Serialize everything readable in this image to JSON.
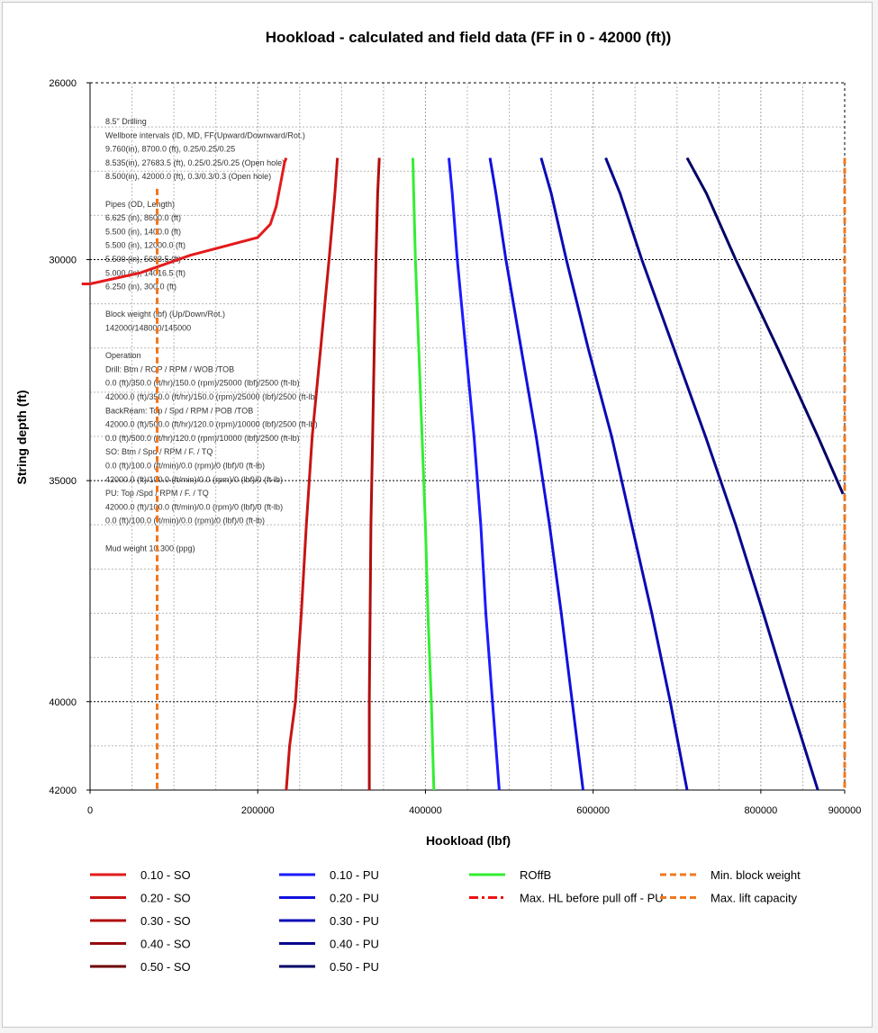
{
  "chart_data": {
    "type": "line",
    "title": "Hookload - calculated and field data (FF in 0 - 42000 (ft))",
    "xlabel": "Hookload (lbf)",
    "ylabel": "String depth (ft)",
    "xlim": [
      0,
      900000
    ],
    "ylim": [
      26000,
      42000
    ],
    "y_inverted": true,
    "x_ticks": [
      0,
      200000,
      400000,
      600000,
      800000,
      900000
    ],
    "x_tick_labels": [
      "0",
      "200000",
      "400000",
      "600000",
      "800000",
      "900000"
    ],
    "y_ticks": [
      26000,
      30000,
      35000,
      40000,
      42000
    ],
    "y_tick_labels": [
      "26000",
      "30000",
      "35000",
      "40000",
      "42000"
    ],
    "grid": true,
    "legend_position": "bottom",
    "series": [
      {
        "name": "0.10 - SO",
        "color": "#e41a1c",
        "style": "solid",
        "points": [
          [
            -10000,
            30550
          ],
          [
            0,
            30550
          ],
          [
            60000,
            30300
          ],
          [
            120000,
            29900
          ],
          [
            200000,
            29500
          ],
          [
            215000,
            29200
          ],
          [
            222000,
            28800
          ],
          [
            228000,
            28200
          ],
          [
            232000,
            27800
          ],
          [
            234000,
            27700
          ]
        ]
      },
      {
        "name": "0.20 - SO",
        "color": "#c81414",
        "style": "solid",
        "points": [
          [
            295000,
            27700
          ],
          [
            292000,
            28500
          ],
          [
            285000,
            30000
          ],
          [
            275000,
            32000
          ],
          [
            265000,
            34000
          ],
          [
            258000,
            36000
          ],
          [
            252000,
            38000
          ],
          [
            245000,
            40000
          ],
          [
            238000,
            41000
          ],
          [
            234000,
            42000
          ]
        ]
      },
      {
        "name": "0.30 - SO",
        "color": "#b00e0e",
        "style": "solid",
        "points": [
          [
            345000,
            27700
          ],
          [
            343000,
            28500
          ],
          [
            341000,
            30000
          ],
          [
            339000,
            32000
          ],
          [
            337000,
            34000
          ],
          [
            335000,
            36000
          ],
          [
            334000,
            38000
          ],
          [
            333000,
            40000
          ],
          [
            333000,
            42000
          ]
        ]
      },
      {
        "name": "0.40 - SO",
        "color": "#960a0a",
        "style": "solid",
        "points": []
      },
      {
        "name": "0.50 - SO",
        "color": "#6e0000",
        "style": "solid",
        "points": []
      },
      {
        "name": "0.10 - PU",
        "color": "#1a1aff",
        "style": "solid",
        "points": [
          [
            428000,
            27700
          ],
          [
            432000,
            28500
          ],
          [
            438000,
            30000
          ],
          [
            448000,
            32000
          ],
          [
            458000,
            34000
          ],
          [
            466000,
            36000
          ],
          [
            472000,
            38000
          ],
          [
            480000,
            40000
          ],
          [
            488000,
            42000
          ]
        ]
      },
      {
        "name": "0.20 - PU",
        "color": "#1010dd",
        "style": "solid",
        "points": [
          [
            477000,
            27700
          ],
          [
            484000,
            28500
          ],
          [
            496000,
            30000
          ],
          [
            514000,
            32000
          ],
          [
            532000,
            34000
          ],
          [
            548000,
            36000
          ],
          [
            562000,
            38000
          ],
          [
            575000,
            40000
          ],
          [
            588000,
            42000
          ]
        ]
      },
      {
        "name": "0.30 - PU",
        "color": "#0a0ab8",
        "style": "solid",
        "points": [
          [
            538000,
            27700
          ],
          [
            550000,
            28500
          ],
          [
            568000,
            30000
          ],
          [
            594000,
            32000
          ],
          [
            622000,
            34000
          ],
          [
            646000,
            36000
          ],
          [
            670000,
            38000
          ],
          [
            692000,
            40000
          ],
          [
            712000,
            42000
          ]
        ]
      },
      {
        "name": "0.40 - PU",
        "color": "#06068e",
        "style": "solid",
        "points": [
          [
            615000,
            27700
          ],
          [
            632000,
            28500
          ],
          [
            658000,
            30000
          ],
          [
            696000,
            32000
          ],
          [
            734000,
            34000
          ],
          [
            770000,
            36000
          ],
          [
            803000,
            38000
          ],
          [
            835000,
            40000
          ],
          [
            868000,
            42000
          ]
        ]
      },
      {
        "name": "0.50 - PU",
        "color": "#000066",
        "style": "solid",
        "points": [
          [
            712000,
            27700
          ],
          [
            735000,
            28500
          ],
          [
            770000,
            30000
          ],
          [
            820000,
            32000
          ],
          [
            868000,
            34000
          ],
          [
            898000,
            35300
          ]
        ]
      },
      {
        "name": "ROffB",
        "color": "#33ee33",
        "style": "solid",
        "points": [
          [
            385000,
            27700
          ],
          [
            386000,
            28500
          ],
          [
            388000,
            30000
          ],
          [
            392000,
            32000
          ],
          [
            396000,
            34000
          ],
          [
            400000,
            36000
          ],
          [
            403000,
            38000
          ],
          [
            407000,
            40000
          ],
          [
            410000,
            42000
          ]
        ]
      },
      {
        "name": "Max. HL before pull off - PU",
        "color": "#ee1111",
        "style": "dashdot",
        "points": []
      },
      {
        "name": "Min. block weight",
        "color": "#f07820",
        "style": "dashed",
        "points": [
          [
            80000,
            28400
          ],
          [
            80000,
            42000
          ]
        ]
      },
      {
        "name": "Max. lift capacity",
        "color": "#f07820",
        "style": "dashed",
        "points": [
          [
            900000,
            27700
          ],
          [
            900000,
            42000
          ]
        ]
      }
    ],
    "annotation": [
      "8.5\" Drilling",
      "Wellbore intervals (ID, MD,  FF(Upward/Downward/Rot.)",
      "9.760(in), 8700.0 (ft), 0.25/0.25/0.25",
      "8.535(in), 27683.5 (ft), 0.25/0.25/0.25 (Open hole)",
      "8.500(in), 42000.0 (ft), 0.3/0.3/0.3 (Open hole)",
      "",
      "Pipes (OD, Length)",
      "6.625 (in), 8600.0 (ft)",
      "5.500 (in), 1400.0 (ft)",
      "5.500 (in), 12000.0 (ft)",
      "5.500 (in), 5683.5 (ft)",
      "5.000 (in), 14016.5 (ft)",
      "6.250 (in), 300.0 (ft)",
      "",
      "Block weight (lbf) (Up/Down/Rot.)",
      "142000/148000/145000",
      "",
      "Operation",
      "Drill: Btm / ROP / RPM / WOB /TOB",
      "0.0 (ft)/350.0 (ft/hr)/150.0 (rpm)/25000 (lbf)/2500 (ft-lb)",
      "42000.0 (ft)/350.0 (ft/hr)/150.0 (rpm)/25000 (lbf)/2500 (ft-lb)",
      "BackReam: Top  / Spd / RPM / POB /TOB",
      "42000.0 (ft)/500.0 (ft/hr)/120.0 (rpm)/10000 (lbf)/2500 (ft-lb)",
      "0.0 (ft)/500.0 (ft/hr)/120.0 (rpm)/10000 (lbf)/2500 (ft-lb)",
      "SO: Btm / Spd / RPM / F. / TQ",
      "0.0 (ft)/100.0 (ft/min)/0.0 (rpm)/0 (lbf)/0 (ft-lb)",
      "42000.0 (ft)/100.0 (ft/min)/0.0 (rpm)/0 (lbf)/0 (ft-lb)",
      "PU: Top /Spd / RPM / F. / TQ",
      "42000.0 (ft)/100.0 (ft/min)/0.0 (rpm)/0 (lbf)/0 (ft-lb)",
      "0.0 (ft)/100.0 (ft/min)/0.0 (rpm)/0 (lbf)/0 (ft-lb)",
      "",
      "Mud weight 10.300 (ppg)"
    ]
  }
}
